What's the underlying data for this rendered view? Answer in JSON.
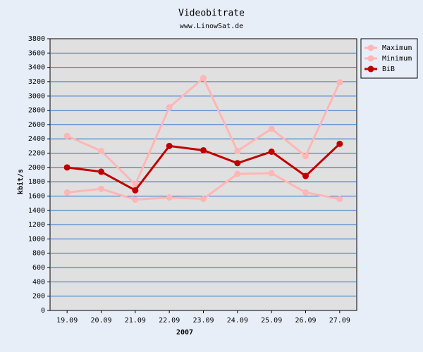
{
  "chart_data": {
    "type": "line",
    "title": "Videobitrate",
    "subtitle": "www.LinowSat.de",
    "x_label": "2007",
    "y_label": "kbit/s",
    "categories": [
      "19.09",
      "20.09",
      "21.09",
      "22.09",
      "23.09",
      "24.09",
      "25.09",
      "26.09",
      "27.09"
    ],
    "series": [
      {
        "name": "Maximum",
        "color": "#ffb6b6",
        "values": [
          2440,
          2230,
          1760,
          2840,
          3250,
          2230,
          2540,
          2160,
          3190
        ]
      },
      {
        "name": "Minimum",
        "color": "#ffb6b6",
        "values": [
          1650,
          1700,
          1550,
          1580,
          1560,
          1910,
          1920,
          1650,
          1560
        ]
      },
      {
        "name": "BiB",
        "color": "#c00000",
        "values": [
          2000,
          1940,
          1680,
          2300,
          2240,
          2060,
          2220,
          1880,
          2330
        ]
      }
    ],
    "ylim": [
      0,
      3800
    ],
    "yticks": [
      0,
      200,
      400,
      600,
      800,
      1000,
      1200,
      1400,
      1600,
      1800,
      2000,
      2200,
      2400,
      2600,
      2800,
      3000,
      3200,
      3400,
      3600,
      3800
    ],
    "grid": true,
    "grid_color": "#1e6ec8",
    "legend": "right"
  }
}
